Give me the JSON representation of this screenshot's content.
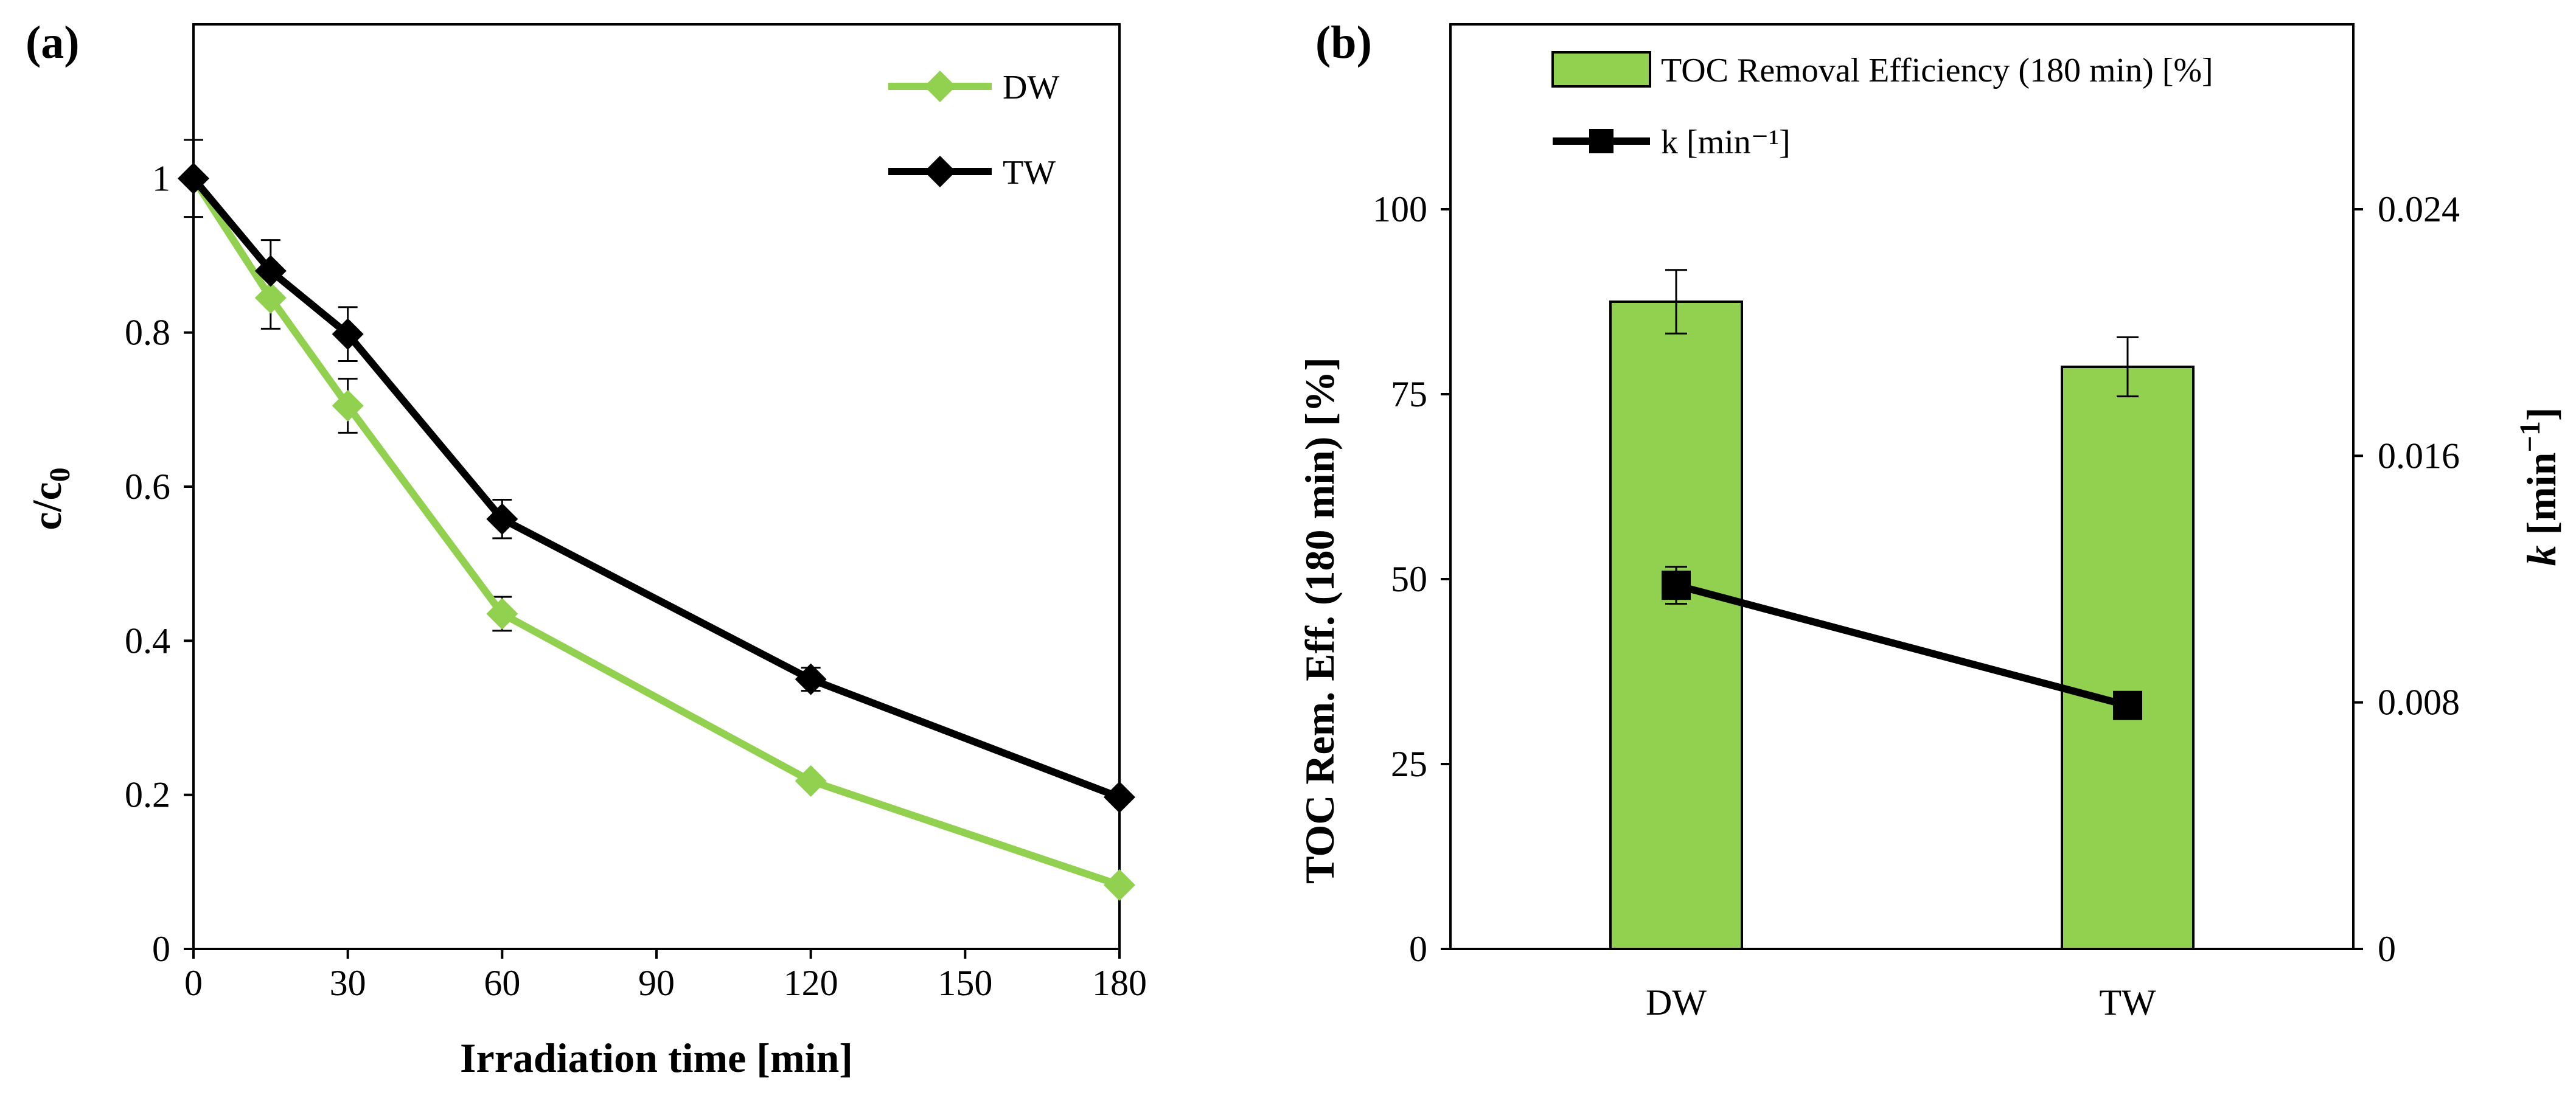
{
  "chart_data": [
    {
      "panel": "(a)",
      "type": "line",
      "title": "",
      "xlabel": "Irradiation time [min]",
      "ylabel_main": "c/c",
      "ylabel_sub": "0",
      "x": [
        0,
        15,
        30,
        60,
        120,
        180
      ],
      "xlim": [
        0,
        180
      ],
      "ylim": [
        0,
        1.2
      ],
      "xticks": [
        "0",
        "30",
        "60",
        "90",
        "120",
        "150",
        "180"
      ],
      "xtick_values": [
        0,
        30,
        60,
        90,
        120,
        150,
        180
      ],
      "yticks": [
        "0",
        "0.2",
        "0.4",
        "0.6",
        "0.8",
        "1"
      ],
      "ytick_values": [
        0,
        0.2,
        0.4,
        0.6,
        0.8,
        1.0
      ],
      "legend_position": "top-right",
      "series": [
        {
          "name": "DW",
          "color": "#92d050",
          "marker": "diamond",
          "values": [
            1.0,
            0.845,
            0.705,
            0.435,
            0.218,
            0.083
          ],
          "errors": [
            0.0,
            0.04,
            0.035,
            0.022,
            0.0,
            0.0
          ]
        },
        {
          "name": "TW",
          "color": "#000000",
          "marker": "diamond",
          "values": [
            1.0,
            0.88,
            0.798,
            0.558,
            0.35,
            0.197
          ],
          "errors": [
            0.05,
            0.04,
            0.035,
            0.025,
            0.015,
            0.0
          ]
        }
      ]
    },
    {
      "panel": "(b)",
      "type": "bar",
      "categories": [
        "DW",
        "TW"
      ],
      "ylabel_left": "TOC Rem. Eff. (180 min) [%]",
      "ylabel_right_italic": "k",
      "ylabel_right_rest": " [min",
      "ylabel_right_sup": "−1",
      "ylabel_right_end": "]",
      "ylim_left": [
        0,
        125
      ],
      "ylim_right": [
        0,
        0.03
      ],
      "yticks_left": [
        "0",
        "25",
        "50",
        "75",
        "100"
      ],
      "ytick_values_left": [
        0,
        25,
        50,
        75,
        100
      ],
      "yticks_right": [
        "0",
        "0.008",
        "0.016",
        "0.024"
      ],
      "ytick_values_right": [
        0,
        0.008,
        0.016,
        0.024
      ],
      "legend_position": "top",
      "bar_series": {
        "name": "TOC Removal Efficiency (180 min) [%]",
        "color": "#92d050",
        "values": [
          87.5,
          78.7
        ],
        "errors": [
          4.3,
          4.0
        ]
      },
      "line_series": {
        "name": "k [min⁻¹]",
        "color": "#000000",
        "marker": "square",
        "values": [
          0.0118,
          0.0079
        ],
        "errors": [
          0.0006,
          0.0
        ]
      }
    }
  ]
}
